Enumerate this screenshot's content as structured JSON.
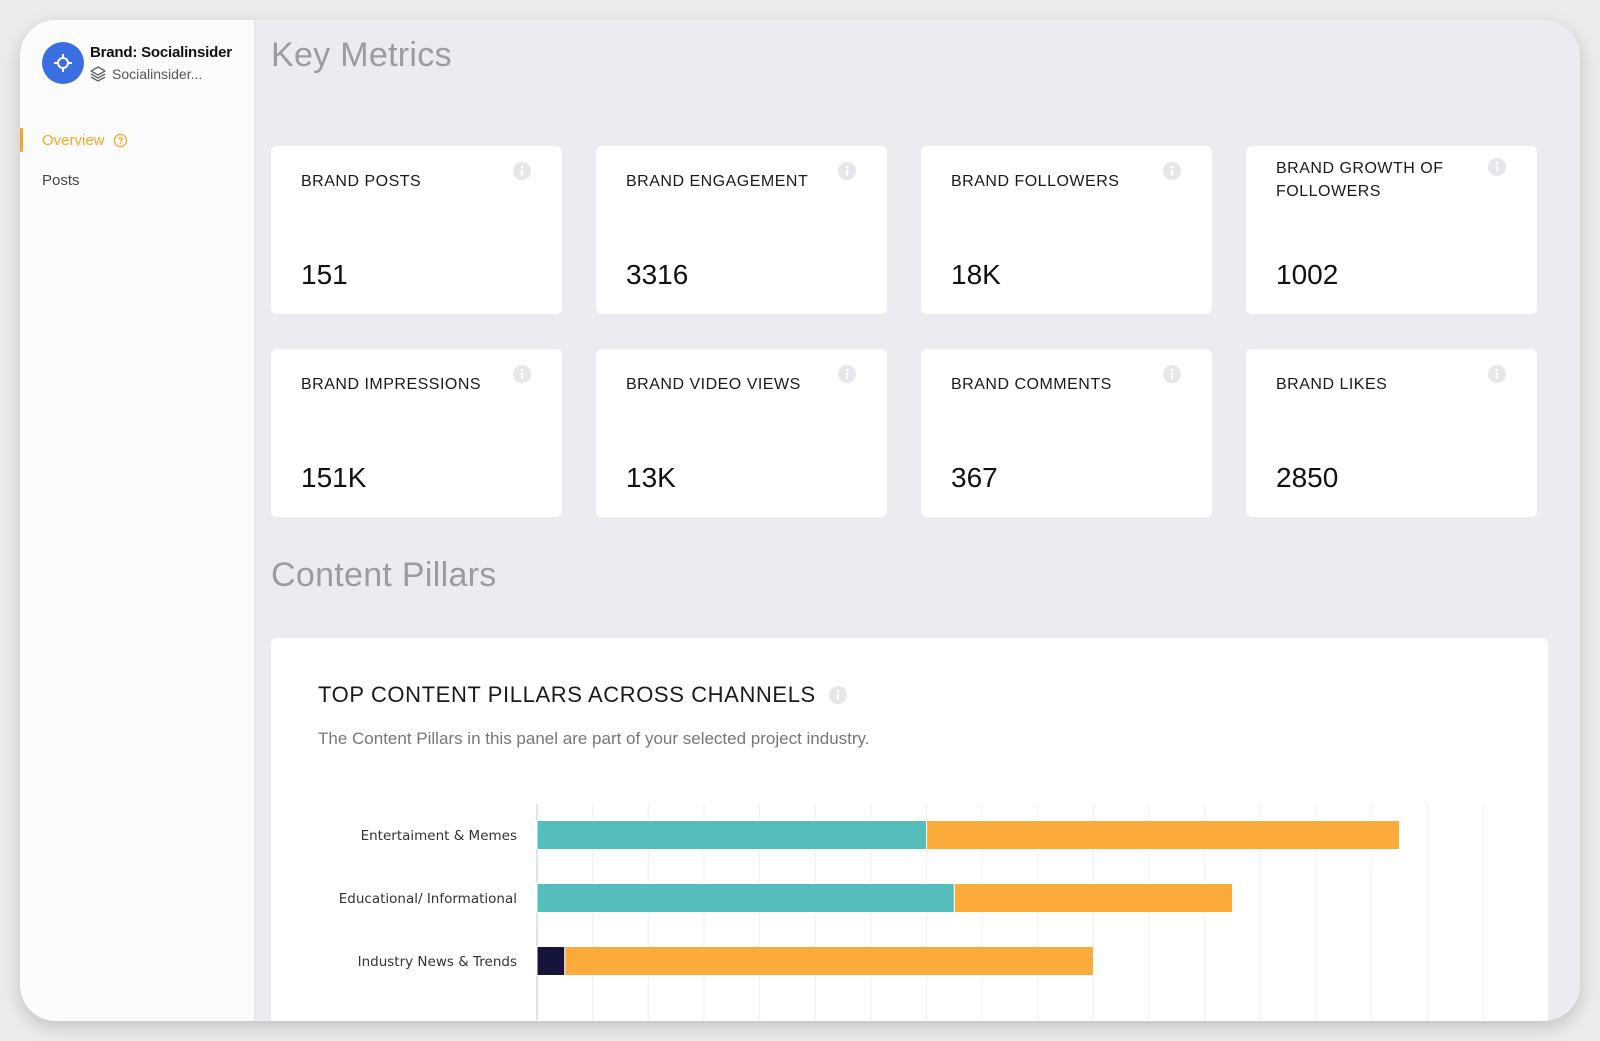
{
  "brand": {
    "title": "Brand: Socialinsider",
    "subtitle": "Socialinsider...",
    "accent_color": "#3b6ee0"
  },
  "nav": {
    "items": [
      {
        "label": "Overview",
        "active": true,
        "icon": "help-circle-icon"
      },
      {
        "label": "Posts",
        "active": false
      }
    ],
    "active_color": "#f5a623"
  },
  "sections": {
    "key_metrics": "Key Metrics",
    "content_pillars": "Content Pillars"
  },
  "metrics": [
    {
      "label": "BRAND POSTS",
      "value": "151"
    },
    {
      "label": "BRAND ENGAGEMENT",
      "value": "3316"
    },
    {
      "label": "BRAND FOLLOWERS",
      "value": "18K"
    },
    {
      "label": "BRAND GROWTH OF FOLLOWERS",
      "value": "1002"
    },
    {
      "label": "BRAND IMPRESSIONS",
      "value": "151K"
    },
    {
      "label": "BRAND VIDEO VIEWS",
      "value": "13K"
    },
    {
      "label": "BRAND COMMENTS",
      "value": "367"
    },
    {
      "label": "BRAND LIKES",
      "value": "2850"
    }
  ],
  "panel": {
    "title": "TOP CONTENT PILLARS ACROSS CHANNELS",
    "subtitle": "The Content Pillars in this panel are part of your selected project industry."
  },
  "chart_data": {
    "type": "bar",
    "orientation": "horizontal",
    "stacked": true,
    "categories": [
      "Entertaiment & Memes",
      "Educational/ Informational",
      "Industry News & Trends"
    ],
    "series": [
      {
        "name": "dark",
        "color": "#15143a",
        "values": [
          0,
          0,
          2.5
        ]
      },
      {
        "name": "teal",
        "color": "#56bdbd",
        "values": [
          35,
          37.5,
          0
        ]
      },
      {
        "name": "orange",
        "color": "#fbab3a",
        "values": [
          42.5,
          25,
          47.5
        ]
      }
    ],
    "xlim": [
      0,
      85
    ],
    "grid": true
  }
}
